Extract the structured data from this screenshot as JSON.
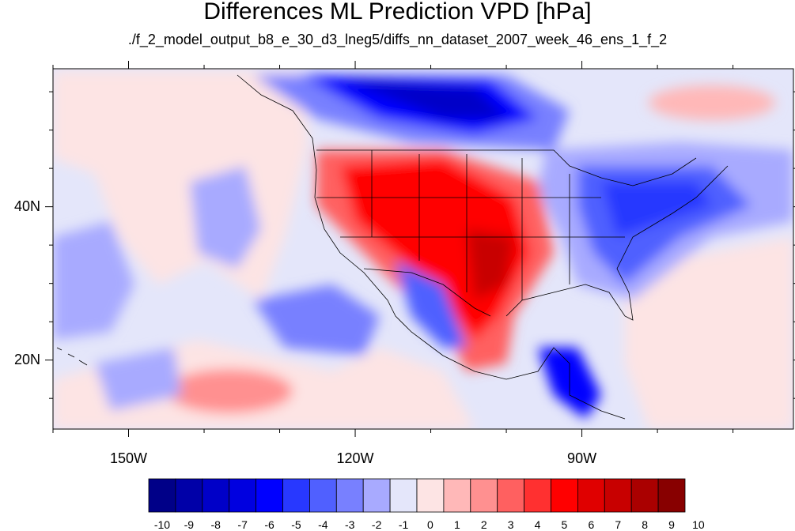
{
  "title": "Differences ML Prediction VPD [hPa]",
  "subtitle": "./f_2_model_output_b8_e_30_d3_lneg5/diffs_nn_dataset_2007_week_46_ens_1_f_2",
  "map": {
    "projection": "cylindrical-equidistant",
    "lon_range": [
      -160,
      -62
    ],
    "lat_range": [
      11,
      58
    ],
    "lat_labels": [
      {
        "value": 40,
        "label": "40N"
      },
      {
        "value": 20,
        "label": "20N"
      }
    ],
    "lon_labels": [
      {
        "value": -150,
        "label": "150W"
      },
      {
        "value": -120,
        "label": "120W"
      },
      {
        "value": -90,
        "label": "90W"
      }
    ],
    "regions": [
      {
        "name": "southwest-us-positive",
        "lon": -112,
        "lat": 39,
        "value": 6
      },
      {
        "name": "southern-plains-positive",
        "lon": -100,
        "lat": 33,
        "value": 7
      },
      {
        "name": "northern-mexico-positive",
        "lon": -103,
        "lat": 26,
        "value": 6
      },
      {
        "name": "canada-negative",
        "lon": -108,
        "lat": 55,
        "value": -6
      },
      {
        "name": "eastern-us-negative",
        "lon": -82,
        "lat": 38,
        "value": -4
      },
      {
        "name": "central-america-negative",
        "lon": -88,
        "lat": 17,
        "value": -6
      },
      {
        "name": "pacific-negative",
        "lon": -128,
        "lat": 25,
        "value": -3
      },
      {
        "name": "subtropical-pacific-positive",
        "lon": -140,
        "lat": 16,
        "value": 2
      }
    ]
  },
  "colorbar": {
    "levels": [
      -10,
      -9,
      -8,
      -7,
      -6,
      -5,
      -4,
      -3,
      -2,
      -1,
      0,
      1,
      2,
      3,
      4,
      5,
      6,
      7,
      8,
      9,
      10
    ],
    "labels": [
      "-10",
      "-9",
      "-8",
      "-7",
      "-6",
      "-5",
      "-4",
      "-3",
      "-2",
      "-1",
      "0",
      "1",
      "2",
      "3",
      "4",
      "5",
      "6",
      "7",
      "8",
      "9",
      "10"
    ],
    "colors": [
      "#000088",
      "#0000a8",
      "#0000c8",
      "#0000e0",
      "#0000ff",
      "#2838ff",
      "#5060ff",
      "#7880ff",
      "#a8aaff",
      "#e4e6fa",
      "#fde4e4",
      "#ffb8b8",
      "#ff9090",
      "#ff6060",
      "#ff3030",
      "#ff0000",
      "#e00000",
      "#c80000",
      "#aa0000",
      "#880000"
    ]
  }
}
